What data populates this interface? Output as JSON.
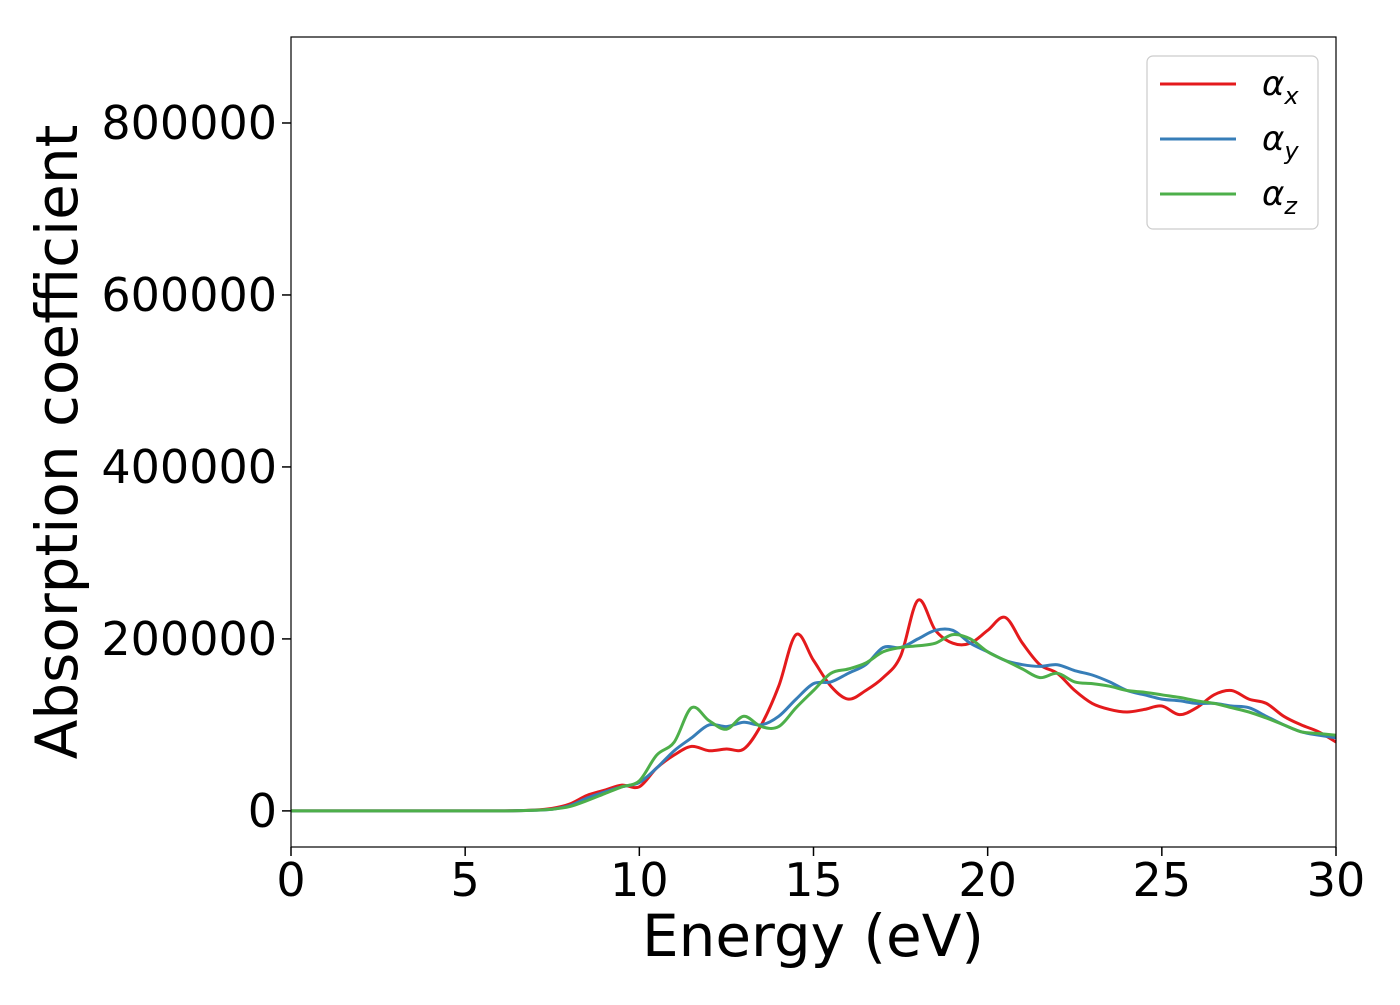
{
  "chart_data": {
    "type": "line",
    "title": "",
    "xlabel": "Energy (eV)",
    "ylabel": "Absorption coefficient",
    "xlim": [
      0,
      30
    ],
    "ylim": [
      -42000,
      900000
    ],
    "xticks": [
      0,
      5,
      10,
      15,
      20,
      25,
      30
    ],
    "xtick_labels": [
      "0",
      "5",
      "10",
      "15",
      "20",
      "25",
      "30"
    ],
    "yticks": [
      0,
      200000,
      400000,
      600000,
      800000
    ],
    "ytick_labels": [
      "0",
      "200000",
      "400000",
      "600000",
      "800000"
    ],
    "grid": false,
    "legend_position": "top-right",
    "x": [
      0,
      2,
      4,
      6,
      7,
      7.5,
      8,
      8.5,
      9,
      9.5,
      10,
      10.5,
      11,
      11.5,
      12,
      12.5,
      13,
      13.5,
      14,
      14.5,
      15,
      15.5,
      16,
      16.5,
      17,
      17.5,
      18,
      18.5,
      19,
      19.5,
      20,
      20.5,
      21,
      21.5,
      22,
      22.5,
      23,
      23.5,
      24,
      24.5,
      25,
      25.5,
      26,
      26.5,
      27,
      27.5,
      28,
      28.5,
      29,
      29.5,
      30
    ],
    "series": [
      {
        "name": "α",
        "name_sub": "x",
        "color": "#e41a1c",
        "values": [
          0,
          0,
          0,
          0,
          1000,
          3000,
          8000,
          18000,
          24000,
          30000,
          28000,
          50000,
          65000,
          75000,
          70000,
          72000,
          72000,
          100000,
          145000,
          205000,
          175000,
          145000,
          130000,
          140000,
          155000,
          180000,
          245000,
          210000,
          195000,
          195000,
          210000,
          225000,
          195000,
          170000,
          160000,
          140000,
          125000,
          118000,
          115000,
          118000,
          122000,
          112000,
          120000,
          135000,
          140000,
          130000,
          125000,
          110000,
          100000,
          92000,
          80000
        ]
      },
      {
        "name": "α",
        "name_sub": "y",
        "color": "#377eb8",
        "values": [
          0,
          0,
          0,
          0,
          800,
          2000,
          6000,
          15000,
          22000,
          28000,
          33000,
          50000,
          70000,
          85000,
          100000,
          98000,
          103000,
          100000,
          110000,
          130000,
          148000,
          150000,
          160000,
          170000,
          190000,
          190000,
          200000,
          210000,
          210000,
          195000,
          185000,
          175000,
          170000,
          168000,
          170000,
          163000,
          158000,
          150000,
          140000,
          135000,
          130000,
          128000,
          125000,
          125000,
          122000,
          120000,
          110000,
          100000,
          92000,
          88000,
          85000
        ]
      },
      {
        "name": "α",
        "name_sub": "z",
        "color": "#4daf4a",
        "values": [
          0,
          0,
          0,
          0,
          800,
          2000,
          5000,
          12000,
          20000,
          28000,
          35000,
          65000,
          80000,
          120000,
          105000,
          95000,
          110000,
          98000,
          98000,
          120000,
          140000,
          160000,
          165000,
          172000,
          185000,
          190000,
          192000,
          195000,
          205000,
          200000,
          185000,
          175000,
          165000,
          155000,
          160000,
          150000,
          148000,
          145000,
          140000,
          138000,
          135000,
          132000,
          128000,
          125000,
          120000,
          115000,
          108000,
          100000,
          92000,
          90000,
          88000
        ]
      }
    ]
  }
}
